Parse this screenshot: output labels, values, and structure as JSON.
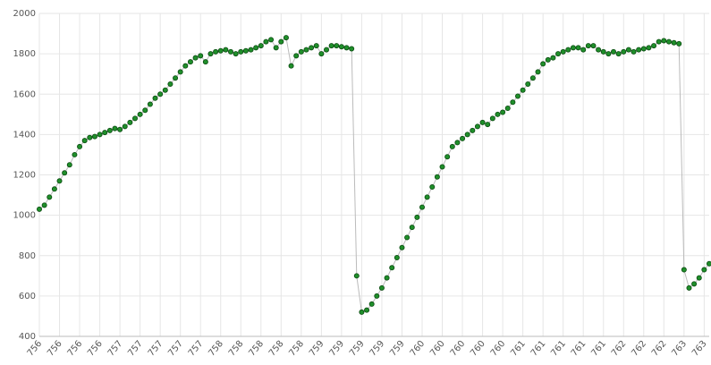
{
  "chart_data": {
    "type": "scatter",
    "color": "#1f8f2a",
    "grid": true,
    "values": [
      1030,
      1050,
      1090,
      1130,
      1170,
      1210,
      1250,
      1300,
      1340,
      1370,
      1385,
      1390,
      1400,
      1410,
      1420,
      1430,
      1425,
      1440,
      1460,
      1480,
      1500,
      1520,
      1550,
      1580,
      1600,
      1620,
      1650,
      1680,
      1710,
      1740,
      1760,
      1780,
      1790,
      1760,
      1800,
      1810,
      1815,
      1820,
      1810,
      1800,
      1810,
      1815,
      1820,
      1830,
      1840,
      1860,
      1870,
      1830,
      1860,
      1880,
      1740,
      1790,
      1810,
      1820,
      1830,
      1840,
      1800,
      1820,
      1840,
      1840,
      1835,
      1830,
      1825,
      700,
      520,
      530,
      560,
      600,
      640,
      690,
      740,
      790,
      840,
      890,
      940,
      990,
      1040,
      1090,
      1140,
      1190,
      1240,
      1290,
      1340,
      1360,
      1380,
      1400,
      1420,
      1440,
      1460,
      1450,
      1480,
      1500,
      1510,
      1530,
      1560,
      1590,
      1620,
      1650,
      1680,
      1710,
      1750,
      1770,
      1780,
      1800,
      1810,
      1820,
      1830,
      1830,
      1820,
      1840,
      1840,
      1820,
      1810,
      1800,
      1810,
      1800,
      1810,
      1820,
      1810,
      1820,
      1825,
      1830,
      1840,
      1860,
      1865,
      1860,
      1855,
      1850,
      730,
      640,
      660,
      690,
      730,
      760
    ],
    "xlim": [
      0,
      133
    ],
    "xticks": [
      {
        "value": 0,
        "label": "756"
      },
      {
        "value": 4,
        "label": "756"
      },
      {
        "value": 8,
        "label": "756"
      },
      {
        "value": 12,
        "label": "756"
      },
      {
        "value": 16,
        "label": "757"
      },
      {
        "value": 20,
        "label": "757"
      },
      {
        "value": 24,
        "label": "757"
      },
      {
        "value": 28,
        "label": "757"
      },
      {
        "value": 32,
        "label": "757"
      },
      {
        "value": 36,
        "label": "758"
      },
      {
        "value": 40,
        "label": "758"
      },
      {
        "value": 44,
        "label": "758"
      },
      {
        "value": 48,
        "label": "758"
      },
      {
        "value": 52,
        "label": "758"
      },
      {
        "value": 56,
        "label": "759"
      },
      {
        "value": 60,
        "label": "759"
      },
      {
        "value": 64,
        "label": "759"
      },
      {
        "value": 68,
        "label": "759"
      },
      {
        "value": 72,
        "label": "759"
      },
      {
        "value": 76,
        "label": "760"
      },
      {
        "value": 80,
        "label": "760"
      },
      {
        "value": 84,
        "label": "760"
      },
      {
        "value": 88,
        "label": "760"
      },
      {
        "value": 92,
        "label": "760"
      },
      {
        "value": 96,
        "label": "761"
      },
      {
        "value": 100,
        "label": "761"
      },
      {
        "value": 104,
        "label": "761"
      },
      {
        "value": 108,
        "label": "761"
      },
      {
        "value": 112,
        "label": "761"
      },
      {
        "value": 116,
        "label": "762"
      },
      {
        "value": 120,
        "label": "762"
      },
      {
        "value": 124,
        "label": "762"
      },
      {
        "value": 128,
        "label": "763"
      },
      {
        "value": 132,
        "label": "763"
      }
    ],
    "ylim": [
      400,
      2000
    ],
    "yticks": [
      400,
      600,
      800,
      1000,
      1200,
      1400,
      1600,
      1800,
      2000
    ]
  }
}
